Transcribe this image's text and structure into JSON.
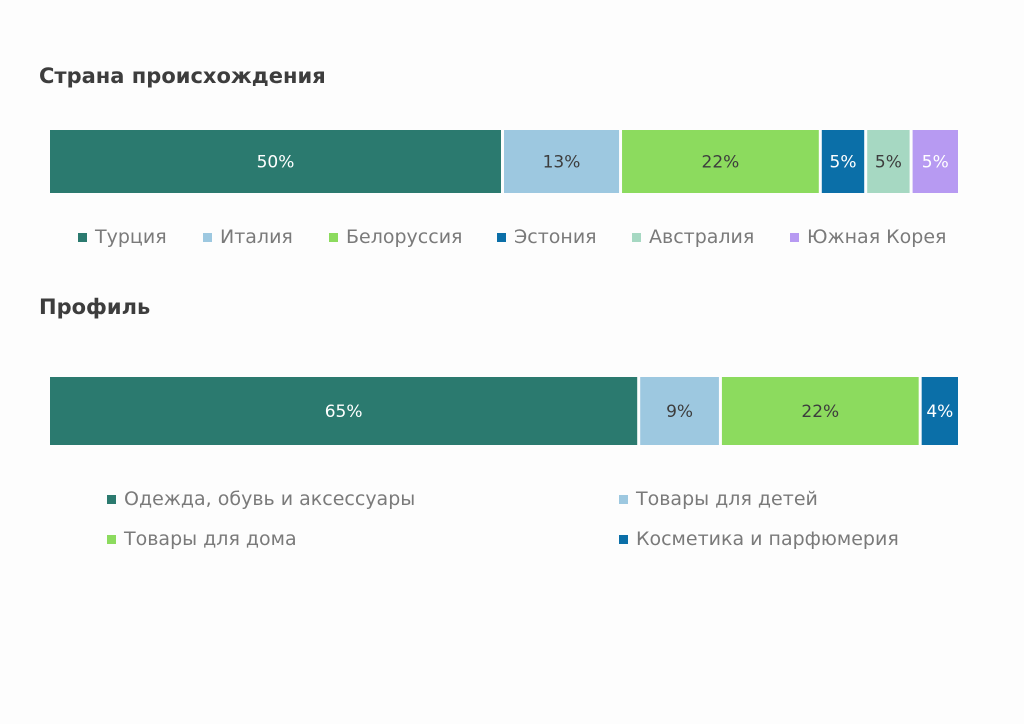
{
  "sections": [
    {
      "title": "Страна происхождения"
    },
    {
      "title": "Профиль"
    }
  ],
  "chart_data": [
    {
      "type": "bar",
      "orientation": "horizontal-stacked-100",
      "title": "Страна происхождения",
      "categories": [
        "Турция",
        "Италия",
        "Белоруссия",
        "Эстония",
        "Австралия",
        "Южная Корея"
      ],
      "values": [
        50,
        13,
        22,
        5,
        5,
        5
      ],
      "labels": [
        "50%",
        "13%",
        "22%",
        "5%",
        "5%",
        "5%"
      ],
      "colors": [
        "#2b7a6f",
        "#9dc8e0",
        "#8cdb5e",
        "#0b6fa8",
        "#a6d8c2",
        "#b79af2"
      ],
      "label_colors": [
        "#ffffff",
        "#3d3d3d",
        "#3d3d3d",
        "#ffffff",
        "#3d3d3d",
        "#ffffff"
      ],
      "legend_position": "bottom"
    },
    {
      "type": "bar",
      "orientation": "horizontal-stacked-100",
      "title": "Профиль",
      "categories": [
        "Одежда, обувь и аксессуары",
        "Товары для детей",
        "Товары для дома",
        "Косметика и парфюмерия"
      ],
      "values": [
        65,
        9,
        22,
        4
      ],
      "labels": [
        "65%",
        "9%",
        "22%",
        "4%"
      ],
      "colors": [
        "#2b7a6f",
        "#9dc8e0",
        "#8cdb5e",
        "#0b6fa8"
      ],
      "label_colors": [
        "#ffffff",
        "#3d3d3d",
        "#3d3d3d",
        "#ffffff"
      ],
      "legend_position": "bottom"
    }
  ]
}
